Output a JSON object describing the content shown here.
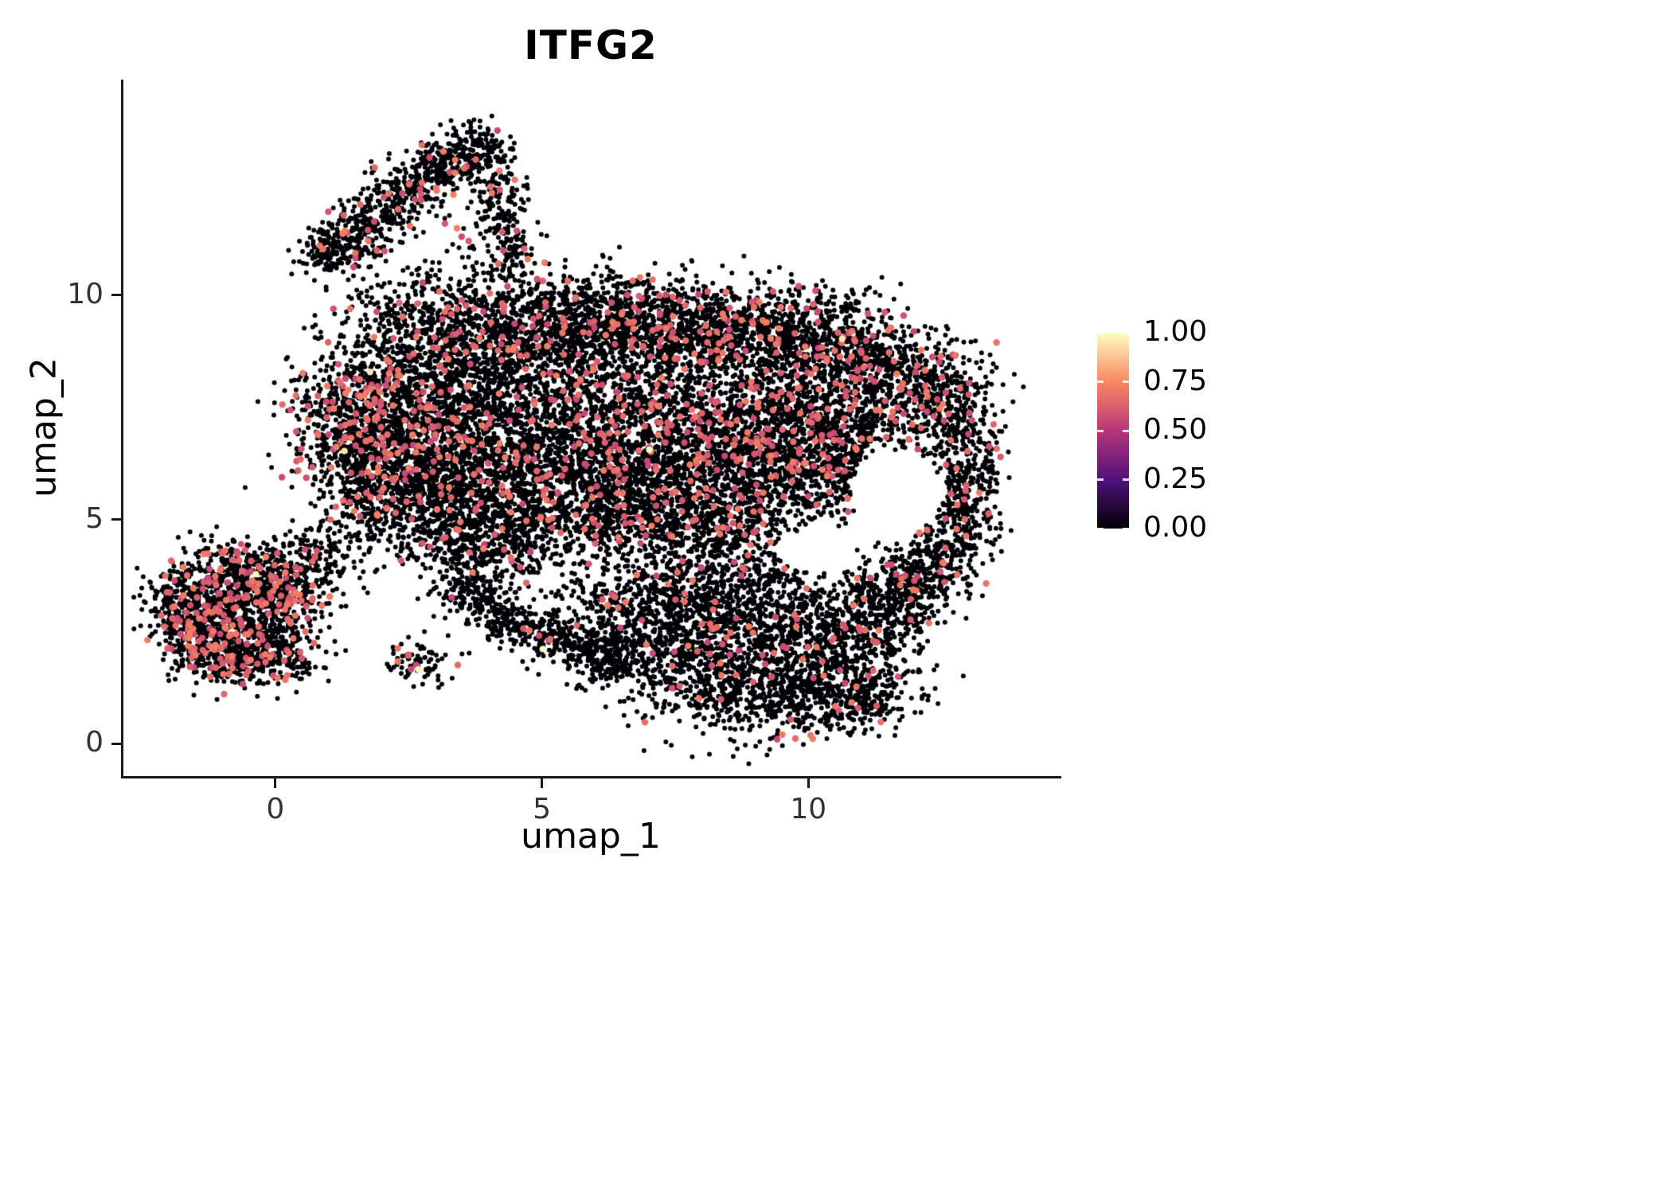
{
  "chart_data": {
    "type": "scatter",
    "title": "ITFG2",
    "xlabel": "umap_1",
    "ylabel": "umap_2",
    "xlim": [
      -2.85,
      14.7
    ],
    "ylim": [
      -0.72,
      14.8
    ],
    "xticks": [
      0,
      5,
      10
    ],
    "yticks": [
      0,
      5,
      10
    ],
    "grid": false,
    "legend": {
      "position": "right",
      "tick_labels": [
        "1.00",
        "0.75",
        "0.50",
        "0.25",
        "0.00"
      ],
      "tick_values": [
        1.0,
        0.75,
        0.5,
        0.25,
        0.0
      ]
    },
    "colormap": {
      "name": "magma",
      "stops": [
        [
          0.0,
          "#000004"
        ],
        [
          0.25,
          "#51127C"
        ],
        [
          0.5,
          "#B63679"
        ],
        [
          0.75,
          "#FB8861"
        ],
        [
          1.0,
          "#FCFDBF"
        ]
      ]
    },
    "style": {
      "background": "#FFFFFF",
      "axis_color": "#1A1A1A",
      "tick_text_color": "#333333",
      "title_color": "#000000",
      "expressed_point_color": "#E8566B"
    },
    "point": {
      "radius_base": 3.0,
      "radius_expressed": 4.2
    },
    "seed": 42,
    "count_scale": 1.4,
    "rare_high_frac": 0.0005,
    "expr_value_range": [
      0.55,
      0.72
    ],
    "high_value_range": [
      0.93,
      1.0
    ],
    "cluster_format": [
      "center_x",
      "center_y",
      "sd_x",
      "sd_y",
      "n_points",
      "expressed_fraction"
    ],
    "holes": [
      [
        11.65,
        5.6,
        0.85,
        0.95
      ],
      [
        10.15,
        4.3,
        0.75,
        0.5
      ]
    ],
    "clusters": [
      [
        1.15,
        11.05,
        0.38,
        0.33,
        150,
        0.05
      ],
      [
        1.8,
        11.7,
        0.35,
        0.3,
        110,
        0.05
      ],
      [
        2.45,
        12.3,
        0.35,
        0.3,
        110,
        0.06
      ],
      [
        3.1,
        12.85,
        0.35,
        0.3,
        110,
        0.06
      ],
      [
        3.75,
        13.25,
        0.4,
        0.28,
        120,
        0.06
      ],
      [
        4.1,
        12.0,
        0.3,
        0.45,
        90,
        0.05
      ],
      [
        4.35,
        11.0,
        0.3,
        0.4,
        70,
        0.04
      ],
      [
        3.0,
        10.3,
        0.7,
        0.5,
        60,
        0.04
      ],
      [
        2.2,
        9.7,
        0.6,
        0.4,
        70,
        0.05
      ],
      [
        3.3,
        9.0,
        0.8,
        0.55,
        330,
        0.07
      ],
      [
        4.6,
        9.2,
        0.8,
        0.5,
        300,
        0.06
      ],
      [
        6.0,
        9.3,
        0.9,
        0.5,
        330,
        0.06
      ],
      [
        7.5,
        9.2,
        0.9,
        0.5,
        330,
        0.07
      ],
      [
        9.0,
        9.1,
        0.9,
        0.5,
        330,
        0.08
      ],
      [
        10.4,
        8.9,
        0.8,
        0.5,
        300,
        0.08
      ],
      [
        11.6,
        8.3,
        0.7,
        0.5,
        260,
        0.09
      ],
      [
        12.5,
        7.6,
        0.5,
        0.5,
        180,
        0.08
      ],
      [
        1.3,
        7.3,
        0.55,
        0.75,
        300,
        0.13
      ],
      [
        2.3,
        7.8,
        0.7,
        0.7,
        320,
        0.1
      ],
      [
        3.5,
        7.6,
        0.8,
        0.7,
        330,
        0.07
      ],
      [
        5.0,
        7.6,
        0.9,
        0.7,
        340,
        0.06
      ],
      [
        6.5,
        7.6,
        0.9,
        0.7,
        340,
        0.07
      ],
      [
        8.0,
        7.5,
        0.9,
        0.7,
        340,
        0.09
      ],
      [
        9.5,
        7.4,
        0.8,
        0.65,
        320,
        0.09
      ],
      [
        10.8,
        7.3,
        0.7,
        0.6,
        280,
        0.09
      ],
      [
        2.1,
        6.4,
        0.7,
        0.6,
        280,
        0.09
      ],
      [
        3.4,
        6.3,
        0.8,
        0.6,
        300,
        0.06
      ],
      [
        5.0,
        6.2,
        0.9,
        0.65,
        320,
        0.06
      ],
      [
        6.6,
        6.1,
        0.9,
        0.65,
        320,
        0.06
      ],
      [
        8.2,
        6.1,
        0.9,
        0.65,
        320,
        0.08
      ],
      [
        9.6,
        6.2,
        0.8,
        0.6,
        300,
        0.08
      ],
      [
        2.9,
        5.3,
        0.7,
        0.55,
        240,
        0.05
      ],
      [
        4.3,
        5.2,
        0.8,
        0.55,
        260,
        0.05
      ],
      [
        5.8,
        5.1,
        0.8,
        0.55,
        260,
        0.05
      ],
      [
        7.3,
        5.0,
        0.8,
        0.55,
        260,
        0.06
      ],
      [
        8.7,
        5.0,
        0.7,
        0.5,
        220,
        0.06
      ],
      [
        3.6,
        4.4,
        0.6,
        0.4,
        140,
        0.04
      ],
      [
        2.0,
        5.6,
        0.5,
        0.5,
        150,
        0.06
      ],
      [
        12.9,
        6.6,
        0.35,
        0.6,
        140,
        0.08
      ],
      [
        13.0,
        5.6,
        0.3,
        0.5,
        110,
        0.07
      ],
      [
        12.8,
        4.8,
        0.35,
        0.5,
        110,
        0.06
      ],
      [
        12.3,
        4.1,
        0.4,
        0.45,
        120,
        0.05
      ],
      [
        11.7,
        3.5,
        0.45,
        0.45,
        140,
        0.05
      ],
      [
        10.6,
        6.0,
        0.5,
        0.5,
        150,
        0.08
      ],
      [
        7.2,
        2.2,
        0.8,
        0.7,
        280,
        0.03
      ],
      [
        8.4,
        1.4,
        0.8,
        0.55,
        280,
        0.03
      ],
      [
        9.6,
        1.1,
        0.8,
        0.5,
        260,
        0.03
      ],
      [
        10.7,
        1.9,
        0.7,
        0.6,
        240,
        0.04
      ],
      [
        11.3,
        2.9,
        0.6,
        0.55,
        220,
        0.04
      ],
      [
        9.8,
        2.6,
        0.8,
        0.6,
        260,
        0.04
      ],
      [
        8.5,
        2.8,
        0.7,
        0.55,
        220,
        0.03
      ],
      [
        6.4,
        3.0,
        0.5,
        0.5,
        130,
        0.03
      ],
      [
        7.4,
        3.6,
        0.6,
        0.45,
        150,
        0.04
      ],
      [
        9.0,
        3.8,
        0.6,
        0.4,
        120,
        0.04
      ],
      [
        10.9,
        0.9,
        0.5,
        0.35,
        110,
        0.03
      ],
      [
        3.6,
        3.4,
        0.35,
        0.3,
        90,
        0.02
      ],
      [
        4.2,
        2.9,
        0.35,
        0.3,
        90,
        0.02
      ],
      [
        4.9,
        2.5,
        0.4,
        0.3,
        100,
        0.02
      ],
      [
        5.7,
        2.15,
        0.4,
        0.28,
        100,
        0.02
      ],
      [
        6.3,
        1.9,
        0.35,
        0.28,
        80,
        0.02
      ],
      [
        2.65,
        1.85,
        0.35,
        0.22,
        60,
        0.02
      ],
      [
        4.6,
        3.9,
        0.8,
        0.4,
        70,
        0.03
      ],
      [
        -1.35,
        3.35,
        0.45,
        0.45,
        200,
        0.14
      ],
      [
        -0.5,
        3.75,
        0.5,
        0.4,
        220,
        0.14
      ],
      [
        0.25,
        3.3,
        0.45,
        0.45,
        200,
        0.13
      ],
      [
        -1.4,
        2.4,
        0.4,
        0.4,
        170,
        0.13
      ],
      [
        -0.5,
        2.5,
        0.5,
        0.45,
        210,
        0.13
      ],
      [
        -0.9,
        1.85,
        0.45,
        0.3,
        130,
        0.12
      ],
      [
        0.15,
        1.95,
        0.4,
        0.3,
        120,
        0.12
      ],
      [
        0.55,
        4.2,
        0.35,
        0.35,
        80,
        0.1
      ],
      [
        -1.9,
        2.9,
        0.25,
        0.5,
        90,
        0.12
      ],
      [
        1.5,
        4.6,
        0.5,
        0.5,
        60,
        0.06
      ],
      [
        5.5,
        10.0,
        1.0,
        0.4,
        90,
        0.05
      ],
      [
        7.5,
        9.9,
        1.0,
        0.35,
        80,
        0.06
      ],
      [
        9.8,
        9.6,
        0.8,
        0.35,
        70,
        0.06
      ]
    ]
  }
}
